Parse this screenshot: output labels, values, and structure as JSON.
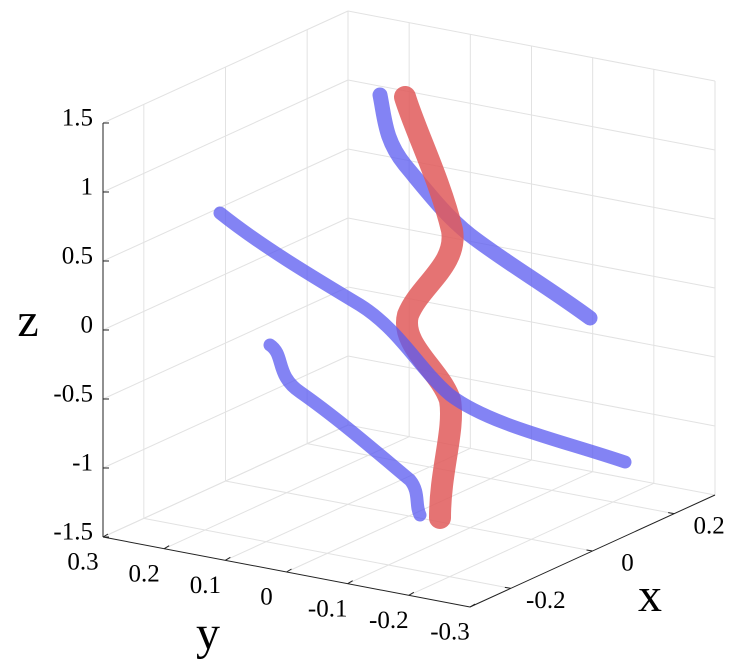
{
  "chart_data": {
    "type": "isosurface3d",
    "xlabel": "x",
    "ylabel": "y",
    "zlabel": "z",
    "xlim": [
      -0.3,
      0.3
    ],
    "ylim": [
      -0.3,
      0.3
    ],
    "zlim": [
      -1.5,
      1.5
    ],
    "xticks": [
      -0.2,
      0,
      0.2
    ],
    "yticks": [
      0.3,
      0.2,
      0.1,
      0,
      -0.1,
      -0.2,
      -0.3
    ],
    "zticks": [
      1.5,
      1,
      0.5,
      0,
      -0.5,
      -1,
      -1.5
    ],
    "grid": true
  }
}
